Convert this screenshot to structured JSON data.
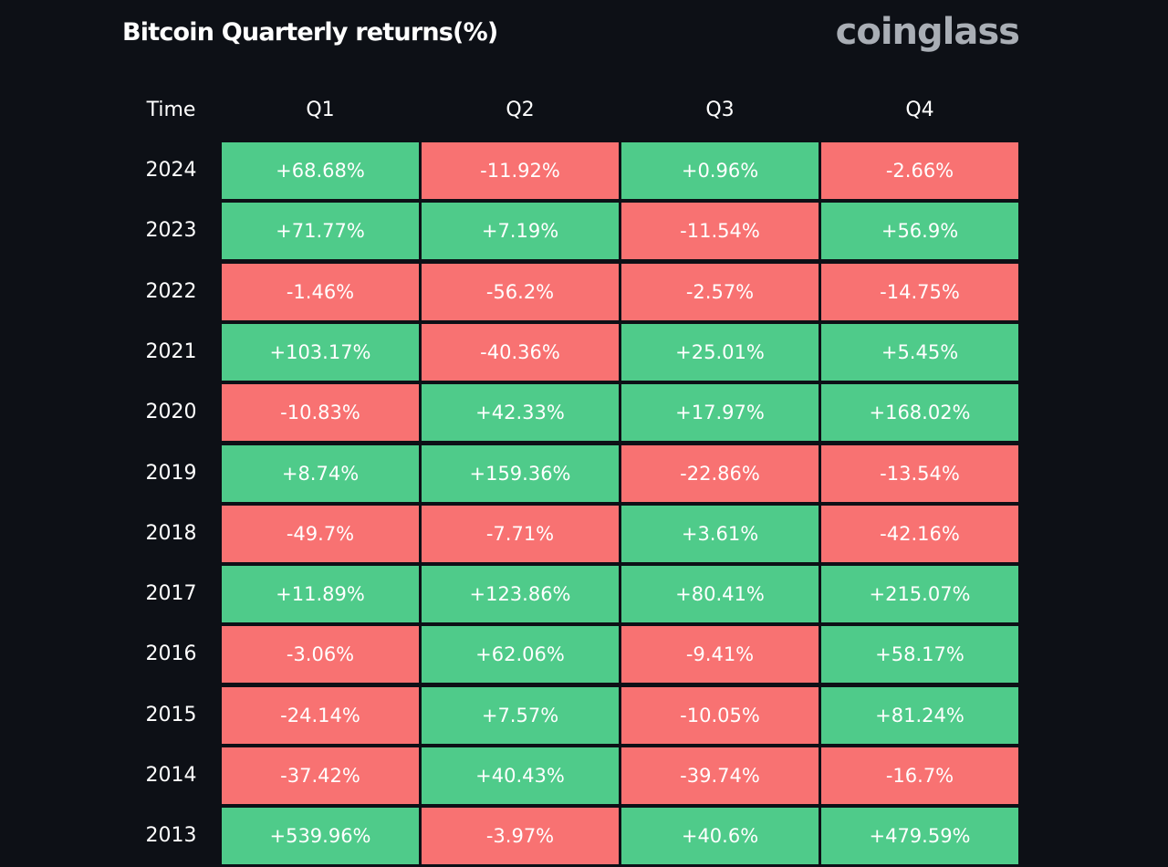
{
  "title": "Bitcoin Quarterly returns(%)",
  "logo": "coinglass",
  "colors": {
    "positive": "#4fcb8a",
    "negative": "#f87272",
    "background": "#0d1016"
  },
  "chart_data": {
    "type": "table",
    "title": "Bitcoin Quarterly returns(%)",
    "row_header": "Time",
    "columns": [
      "Q1",
      "Q2",
      "Q3",
      "Q4"
    ],
    "rows": [
      {
        "year": "2024",
        "values": [
          "+68.68%",
          "-11.92%",
          "+0.96%",
          "-2.66%"
        ]
      },
      {
        "year": "2023",
        "values": [
          "+71.77%",
          "+7.19%",
          "-11.54%",
          "+56.9%"
        ]
      },
      {
        "year": "2022",
        "values": [
          "-1.46%",
          "-56.2%",
          "-2.57%",
          "-14.75%"
        ]
      },
      {
        "year": "2021",
        "values": [
          "+103.17%",
          "-40.36%",
          "+25.01%",
          "+5.45%"
        ]
      },
      {
        "year": "2020",
        "values": [
          "-10.83%",
          "+42.33%",
          "+17.97%",
          "+168.02%"
        ]
      },
      {
        "year": "2019",
        "values": [
          "+8.74%",
          "+159.36%",
          "-22.86%",
          "-13.54%"
        ]
      },
      {
        "year": "2018",
        "values": [
          "-49.7%",
          "-7.71%",
          "+3.61%",
          "-42.16%"
        ]
      },
      {
        "year": "2017",
        "values": [
          "+11.89%",
          "+123.86%",
          "+80.41%",
          "+215.07%"
        ]
      },
      {
        "year": "2016",
        "values": [
          "-3.06%",
          "+62.06%",
          "-9.41%",
          "+58.17%"
        ]
      },
      {
        "year": "2015",
        "values": [
          "-24.14%",
          "+7.57%",
          "-10.05%",
          "+81.24%"
        ]
      },
      {
        "year": "2014",
        "values": [
          "-37.42%",
          "+40.43%",
          "-39.74%",
          "-16.7%"
        ]
      },
      {
        "year": "2013",
        "values": [
          "+539.96%",
          "-3.97%",
          "+40.6%",
          "+479.59%"
        ]
      }
    ]
  }
}
